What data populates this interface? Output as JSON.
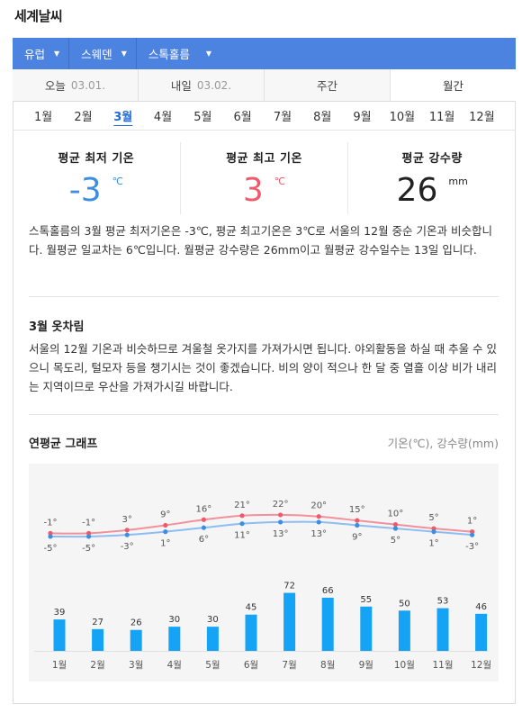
{
  "app_title": "세계날씨",
  "breadcrumb": [
    {
      "label": "유럽"
    },
    {
      "label": "스웨덴"
    },
    {
      "label": "스톡홀름"
    }
  ],
  "tabs": [
    {
      "label": "오늘",
      "date": "03.01."
    },
    {
      "label": "내일",
      "date": "03.02."
    },
    {
      "label": "주간",
      "date": ""
    },
    {
      "label": "월간",
      "date": "",
      "active": true
    }
  ],
  "months": [
    "1월",
    "2월",
    "3월",
    "4월",
    "5월",
    "6월",
    "7월",
    "8월",
    "9월",
    "10월",
    "11월",
    "12월"
  ],
  "selected_month": "3월",
  "stats": {
    "min": {
      "label": "평균 최저 기온",
      "value": "-3",
      "unit": "℃"
    },
    "max": {
      "label": "평균 최고 기온",
      "value": "3",
      "unit": "℃"
    },
    "rain": {
      "label": "평균 강수량",
      "value": "26",
      "unit": "mm"
    }
  },
  "description": "스톡홀름의 3월 평균 최저기온은 -3℃, 평균 최고기온은 3℃로 서울의 12월 중순 기온과 비슷합니다. 월평균 일교차는 6℃입니다. 월평균 강수량은 26mm이고 월평균 강수일수는 13일 입니다.",
  "outfit": {
    "title": "3월 옷차림",
    "text": "서울의 12월 기온과 비슷하므로 겨울철 옷가지를 가져가시면 됩니다. 야외활동을 하실 때 추울 수 있으니 목도리, 털모자 등을 챙기시는 것이 좋겠습니다. 비의 양이 적으나 한 달 중 열흘 이상 비가 내리는 지역이므로 우산을 가져가시길 바랍니다."
  },
  "graph": {
    "title": "연평균 그래프",
    "units": "기온(℃), 강수량(mm)"
  },
  "colors": {
    "accent": "#4d83e0",
    "cold": "#3c8ee2",
    "hot": "#ef5a6a",
    "bar": "#15a3f5"
  },
  "chart_data": {
    "type": "line",
    "categories": [
      "1월",
      "2월",
      "3월",
      "4월",
      "5월",
      "6월",
      "7월",
      "8월",
      "9월",
      "10월",
      "11월",
      "12월"
    ],
    "series": [
      {
        "values": [
          -1,
          -1,
          3,
          9,
          16,
          21,
          22,
          20,
          15,
          10,
          5,
          1
        ],
        "color": "#ef5a6a"
      },
      {
        "values": [
          -5,
          -5,
          -3,
          1,
          6,
          11,
          13,
          13,
          9,
          5,
          1,
          -3
        ],
        "color": "#6aaaf0"
      }
    ],
    "temp_labels_max": [
      "-1°",
      "-1°",
      "3°",
      "9°",
      "16°",
      "21°",
      "22°",
      "20°",
      "15°",
      "10°",
      "5°",
      "1°"
    ],
    "temp_labels_min": [
      "-5°",
      "-5°",
      "-3°",
      "1°",
      "6°",
      "11°",
      "13°",
      "13°",
      "9°",
      "5°",
      "1°",
      "-3°"
    ],
    "precipitation": {
      "type": "bar",
      "values": [
        39,
        27,
        26,
        30,
        30,
        45,
        72,
        66,
        55,
        50,
        53,
        46
      ],
      "color": "#15a3f5"
    }
  }
}
